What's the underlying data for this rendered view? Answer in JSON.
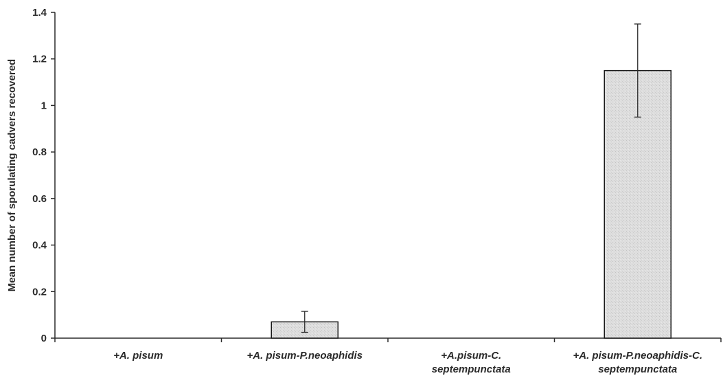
{
  "chart_data": {
    "type": "bar",
    "title": "",
    "xlabel": "",
    "ylabel": "Mean number of sporulating cadvers recovered",
    "ylim": [
      0,
      1.4
    ],
    "yticks": [
      0,
      0.2,
      0.4,
      0.6,
      0.8,
      1,
      1.2,
      1.4
    ],
    "ytick_labels": [
      "0",
      "0.2",
      "0.4",
      "0.6",
      "0.8",
      "1",
      "1.2",
      "1.4"
    ],
    "categories": [
      [
        "+A. pisum"
      ],
      [
        "+A. pisum-P.neoaphidis"
      ],
      [
        "+A.pisum-C.",
        "septempunctata"
      ],
      [
        "+A. pisum-P.neoaphidis-C.",
        "septempunctata"
      ]
    ],
    "values": [
      0,
      0.07,
      0,
      1.15
    ],
    "errors": [
      0,
      0.045,
      0,
      0.2
    ],
    "grid": false,
    "legend": "none",
    "bar_color": "#d9d9d9",
    "bar_edge_color": "#1a1a1a"
  }
}
